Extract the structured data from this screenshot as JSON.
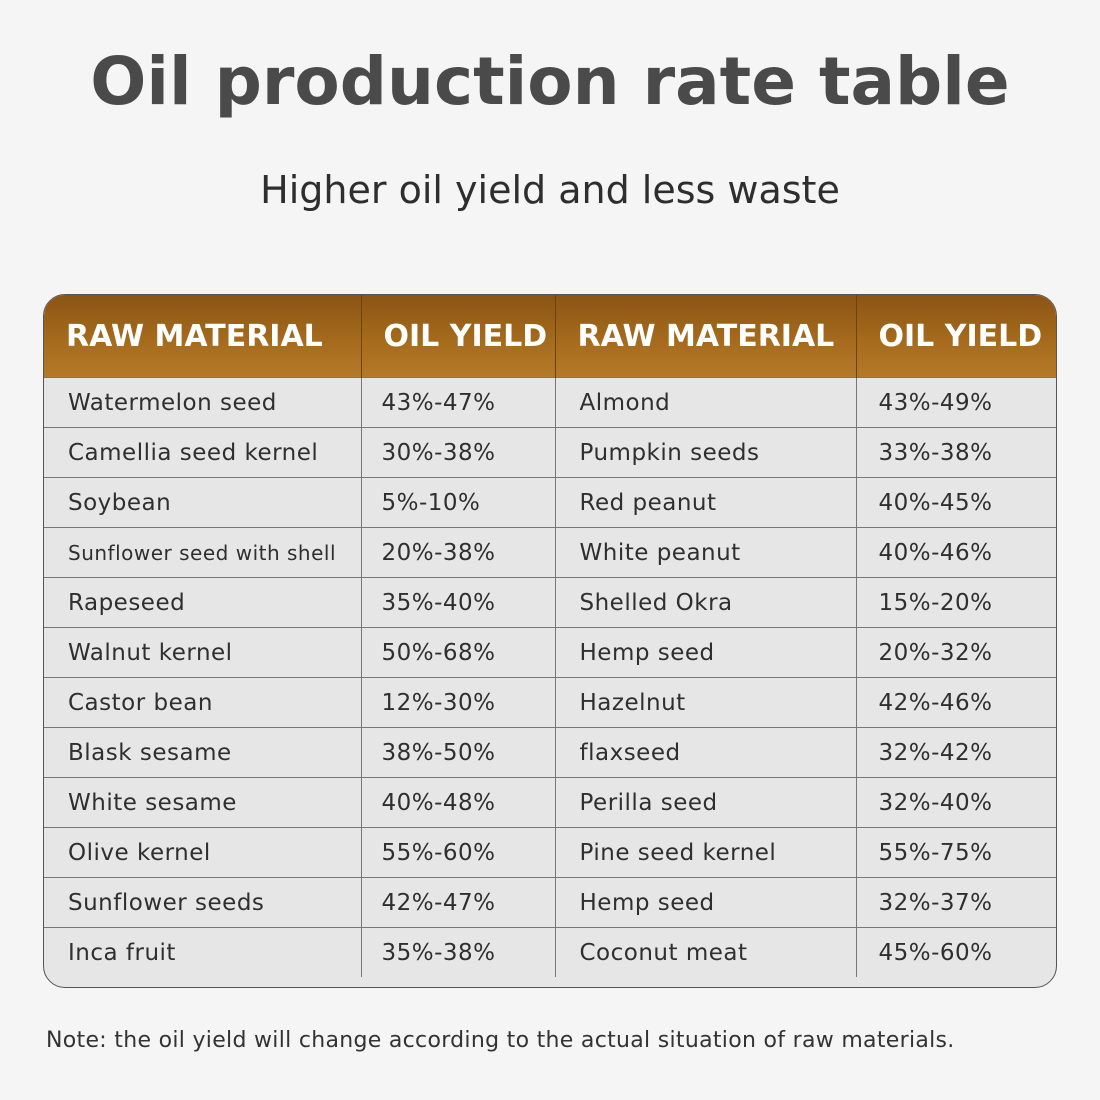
{
  "title": "Oil production rate table",
  "subtitle": "Higher oil yield and less waste",
  "table": {
    "headers": [
      "RAW MATERIAL",
      "OIL YIELD",
      "RAW MATERIAL",
      "OIL YIELD"
    ],
    "rows": [
      [
        "Watermelon seed",
        "43%-47%",
        "Almond",
        "43%-49%"
      ],
      [
        "Camellia seed kernel",
        "30%-38%",
        "Pumpkin seeds",
        "33%-38%"
      ],
      [
        "Soybean",
        "5%-10%",
        "Red peanut",
        "40%-45%"
      ],
      [
        "Sunflower seed with shell",
        "20%-38%",
        "White peanut",
        "40%-46%"
      ],
      [
        "Rapeseed",
        "35%-40%",
        "Shelled Okra",
        "15%-20%"
      ],
      [
        "Walnut kernel",
        "50%-68%",
        "Hemp seed",
        "20%-32%"
      ],
      [
        "Castor bean",
        "12%-30%",
        "Hazelnut",
        "42%-46%"
      ],
      [
        "Blask sesame",
        "38%-50%",
        "flaxseed",
        "32%-42%"
      ],
      [
        "White sesame",
        "40%-48%",
        "Perilla seed",
        "32%-40%"
      ],
      [
        "Olive kernel",
        "55%-60%",
        "Pine seed kernel",
        "55%-75%"
      ],
      [
        "Sunflower seeds",
        "42%-47%",
        "Hemp seed",
        "32%-37%"
      ],
      [
        "Inca fruit",
        "35%-38%",
        "Coconut meat",
        "45%-60%"
      ]
    ]
  },
  "note": "Note: the oil yield will change according to the actual situation of raw materials.",
  "colors": {
    "header_gradient_top": "#8a5414",
    "header_gradient_bottom": "#b57a28",
    "header_text": "#ffffff",
    "row_background": "#e6e6e6",
    "page_background": "#f5f5f5"
  }
}
